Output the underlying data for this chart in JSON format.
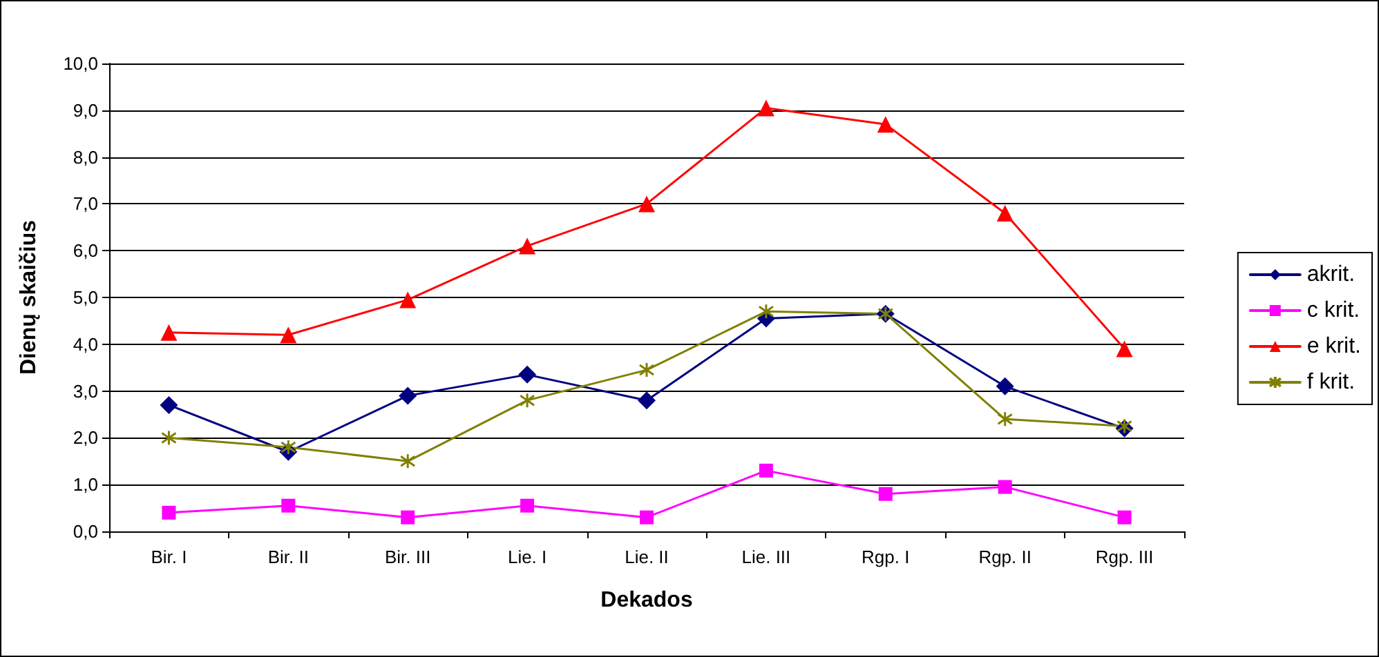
{
  "chart_data": {
    "type": "line",
    "xlabel": "Dekados",
    "ylabel": "Dienų skaičius",
    "categories": [
      "Bir. I",
      "Bir. II",
      "Bir. III",
      "Lie. I",
      "Lie. II",
      "Lie. III",
      "Rgp. I",
      "Rgp. II",
      "Rgp. III"
    ],
    "series": [
      {
        "name": "akrit.",
        "color": "#000080",
        "marker": "diamond",
        "values": [
          2.7,
          1.7,
          2.9,
          3.35,
          2.8,
          4.55,
          4.65,
          3.1,
          2.2
        ]
      },
      {
        "name": "c krit.",
        "color": "#ff00ff",
        "marker": "square",
        "values": [
          0.4,
          0.55,
          0.3,
          0.55,
          0.3,
          1.3,
          0.8,
          0.95,
          0.3
        ]
      },
      {
        "name": "e krit.",
        "color": "#ff0000",
        "marker": "triangle",
        "values": [
          4.25,
          4.2,
          4.95,
          6.1,
          7.0,
          9.05,
          8.7,
          6.8,
          3.9
        ]
      },
      {
        "name": "f krit.",
        "color": "#808000",
        "marker": "cross",
        "values": [
          2.0,
          1.8,
          1.5,
          2.8,
          3.45,
          4.7,
          4.65,
          2.4,
          2.25
        ]
      }
    ],
    "ylim": [
      0,
      10
    ],
    "yticks": [
      {
        "value": 0,
        "label": "0,0"
      },
      {
        "value": 1,
        "label": "1,0"
      },
      {
        "value": 2,
        "label": "2,0"
      },
      {
        "value": 3,
        "label": "3,0"
      },
      {
        "value": 4,
        "label": "4,0"
      },
      {
        "value": 5,
        "label": "5,0"
      },
      {
        "value": 6,
        "label": "6,0"
      },
      {
        "value": 7,
        "label": "7,0"
      },
      {
        "value": 8,
        "label": "8,0"
      },
      {
        "value": 9,
        "label": "9,0"
      },
      {
        "value": 10,
        "label": "10,0"
      }
    ],
    "grid": "y",
    "legend": "right",
    "line_style": "solid"
  }
}
